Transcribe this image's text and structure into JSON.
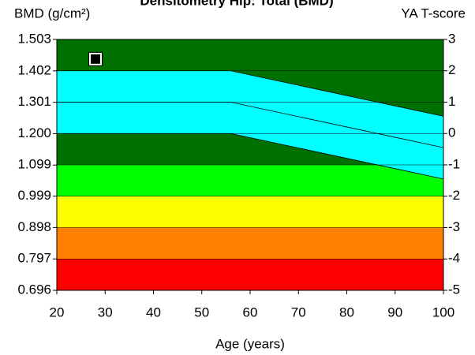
{
  "chart_data": {
    "type": "densitometry",
    "title": "Densitometry Hip: Total (BMD)",
    "ylabel": "BMD (g/cm²)",
    "y2label": "YA T-score",
    "xlabel": "Age (years)",
    "xlim": [
      20,
      100
    ],
    "xticks": [
      20,
      30,
      40,
      50,
      60,
      70,
      80,
      90,
      100
    ],
    "ylim": [
      0.696,
      1.503
    ],
    "yticks": [
      0.696,
      0.797,
      0.898,
      0.999,
      1.099,
      {
        "value": 1.2,
        "label": "1.200"
      },
      1.301,
      1.402,
      1.503
    ],
    "y2lim": [
      -5,
      3
    ],
    "y2ticks": [
      -5,
      -4,
      -3,
      -2,
      -1,
      0,
      1,
      2,
      3
    ],
    "bands": [
      {
        "from": -5,
        "to": -4,
        "color": "#ff0000"
      },
      {
        "from": -4,
        "to": -3,
        "color": "#ff8000"
      },
      {
        "from": -3,
        "to": -2,
        "color": "#ffff00"
      },
      {
        "from": -2,
        "to": -1,
        "color": "#00ff00"
      },
      {
        "from": -1,
        "to": 3,
        "color": "#007000"
      }
    ],
    "reference": {
      "color": "#00ffff",
      "x": [
        20,
        56,
        100
      ],
      "upper": [
        2,
        2,
        0.55
      ],
      "mean": [
        1,
        1,
        -0.45
      ],
      "lower": [
        0,
        0,
        -1.45
      ]
    },
    "patient": {
      "x": 28,
      "y": 1.44
    }
  }
}
